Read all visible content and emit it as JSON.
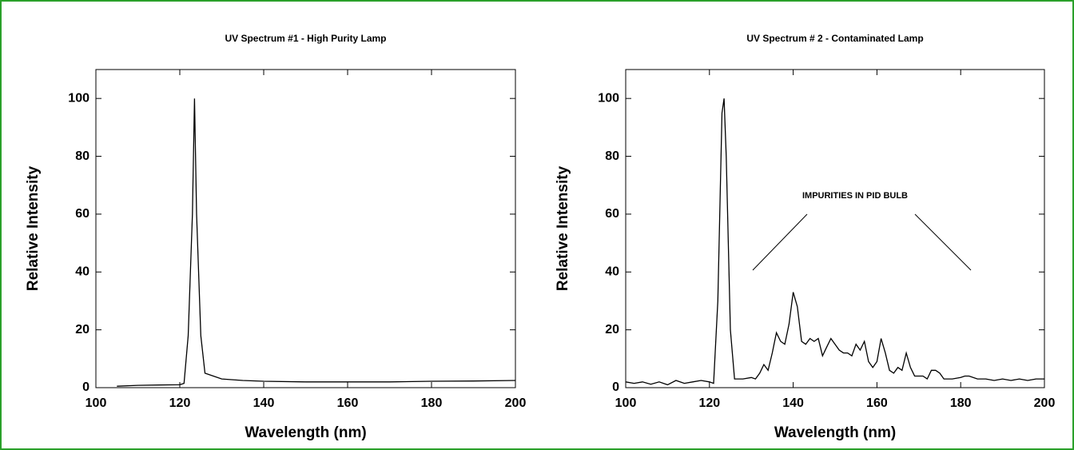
{
  "chart_data": [
    {
      "type": "line",
      "title": "UV Spectrum #1 - High Purity Lamp",
      "x_label": "Wavelength (nm)",
      "y_label": "Relative Intensity",
      "xlim": [
        100,
        200
      ],
      "ylim": [
        0,
        110
      ],
      "xticks": [
        100,
        120,
        140,
        160,
        180,
        200
      ],
      "yticks": [
        0,
        20,
        40,
        60,
        80,
        100
      ],
      "color": "#000000",
      "x": [
        105,
        110,
        115,
        120,
        121,
        122,
        123,
        123.5,
        124,
        125,
        126,
        128,
        130,
        135,
        140,
        150,
        160,
        170,
        180,
        190,
        200
      ],
      "values": [
        0.5,
        0.8,
        0.9,
        1,
        1.5,
        18,
        60,
        100,
        60,
        18,
        5,
        4,
        3,
        2.5,
        2.2,
        2,
        2,
        2,
        2.2,
        2.3,
        2.5
      ]
    },
    {
      "type": "line",
      "title": "UV Spectrum # 2 - Contaminated Lamp",
      "x_label": "Wavelength (nm)",
      "y_label": "Relative Intensity",
      "annotation": "IMPURITIES IN PID BULB",
      "xlim": [
        100,
        200
      ],
      "ylim": [
        0,
        110
      ],
      "xticks": [
        100,
        120,
        140,
        160,
        180,
        200
      ],
      "yticks": [
        0,
        20,
        40,
        60,
        80,
        100
      ],
      "color": "#000000",
      "x": [
        100,
        102,
        104,
        106,
        108,
        110,
        112,
        114,
        116,
        118,
        120,
        121,
        122,
        123,
        123.5,
        124,
        125,
        126,
        128,
        130,
        131,
        132,
        133,
        134,
        135,
        136,
        137,
        138,
        139,
        140,
        141,
        142,
        143,
        144,
        145,
        146,
        147,
        148,
        149,
        150,
        151,
        152,
        153,
        154,
        155,
        156,
        157,
        158,
        159,
        160,
        161,
        162,
        163,
        164,
        165,
        166,
        167,
        168,
        169,
        170,
        171,
        172,
        173,
        174,
        175,
        176,
        178,
        180,
        181,
        182,
        184,
        186,
        188,
        190,
        192,
        194,
        196,
        198,
        200
      ],
      "values": [
        2,
        1.5,
        2,
        1.2,
        2,
        1,
        2.5,
        1.5,
        2,
        2.5,
        2,
        1.5,
        30,
        95,
        100,
        80,
        20,
        3,
        3,
        3.5,
        3,
        5,
        8,
        6,
        12,
        19,
        16,
        15,
        22,
        33,
        28,
        16,
        15,
        17,
        16,
        17,
        11,
        14,
        17,
        15,
        13,
        12,
        12,
        11,
        15,
        13,
        16,
        9,
        7,
        9,
        17,
        12,
        6,
        5,
        7,
        6,
        12,
        7,
        4,
        4,
        4,
        3,
        6,
        6,
        5,
        3,
        3,
        3.5,
        4,
        4,
        3,
        3,
        2.5,
        3,
        2.5,
        3,
        2.5,
        3,
        3
      ]
    }
  ]
}
